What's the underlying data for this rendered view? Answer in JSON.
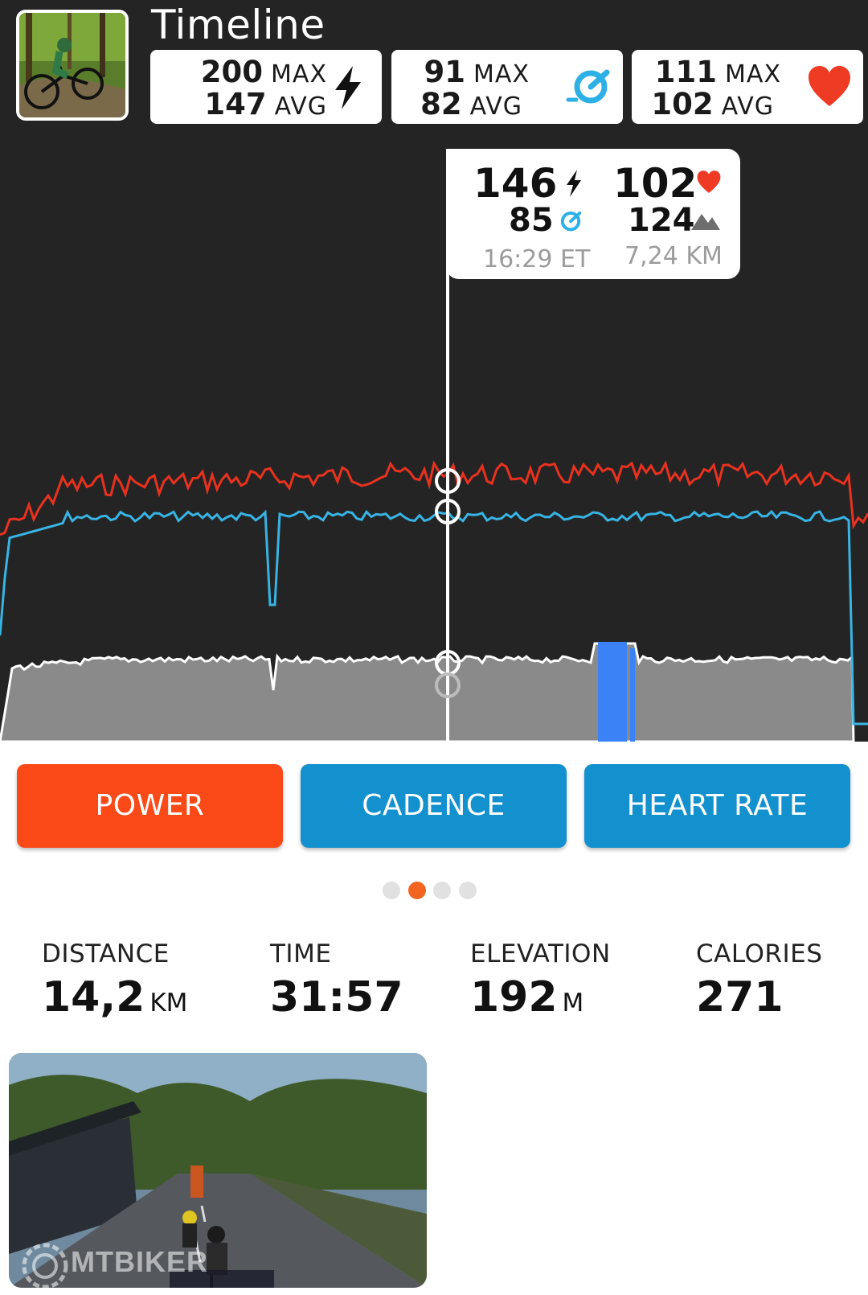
{
  "header": {
    "title": "Timeline"
  },
  "stats": {
    "power": {
      "max": "200",
      "max_label": "MAX",
      "avg": "147",
      "avg_label": "AVG",
      "icon": "lightning-icon"
    },
    "cadence": {
      "max": "91",
      "max_label": "MAX",
      "avg": "82",
      "avg_label": "AVG",
      "icon": "cadence-gauge-icon"
    },
    "heart_rate": {
      "max": "111",
      "max_label": "MAX",
      "avg": "102",
      "avg_label": "AVG",
      "icon": "heart-icon"
    }
  },
  "tooltip": {
    "power": "146",
    "heart_rate": "102",
    "cadence": "85",
    "elevation": "124",
    "time": "16:29 ET",
    "distance": "7,24 KM"
  },
  "chart_colors": {
    "power": "#e8321f",
    "cadence": "#38b4e4",
    "elevation_fill": "#8a8a8a",
    "highlight": "#3b82f6"
  },
  "buttons": {
    "power": "POWER",
    "cadence": "CADENCE",
    "heart_rate": "HEART RATE"
  },
  "pager": {
    "count": 4,
    "active_index": 1
  },
  "summary": {
    "distance": {
      "label": "DISTANCE",
      "value": "14,2",
      "unit": "KM"
    },
    "time": {
      "label": "TIME",
      "value": "31:57"
    },
    "elevation": {
      "label": "ELEVATION",
      "value": "192",
      "unit": "M"
    },
    "calories": {
      "label": "CALORIES",
      "value": "271"
    }
  },
  "watermark": {
    "text": "MTBIKER"
  },
  "colors": {
    "accent": "#fb4a18",
    "button_blue": "#1391cf",
    "dark_bg": "#242424"
  }
}
